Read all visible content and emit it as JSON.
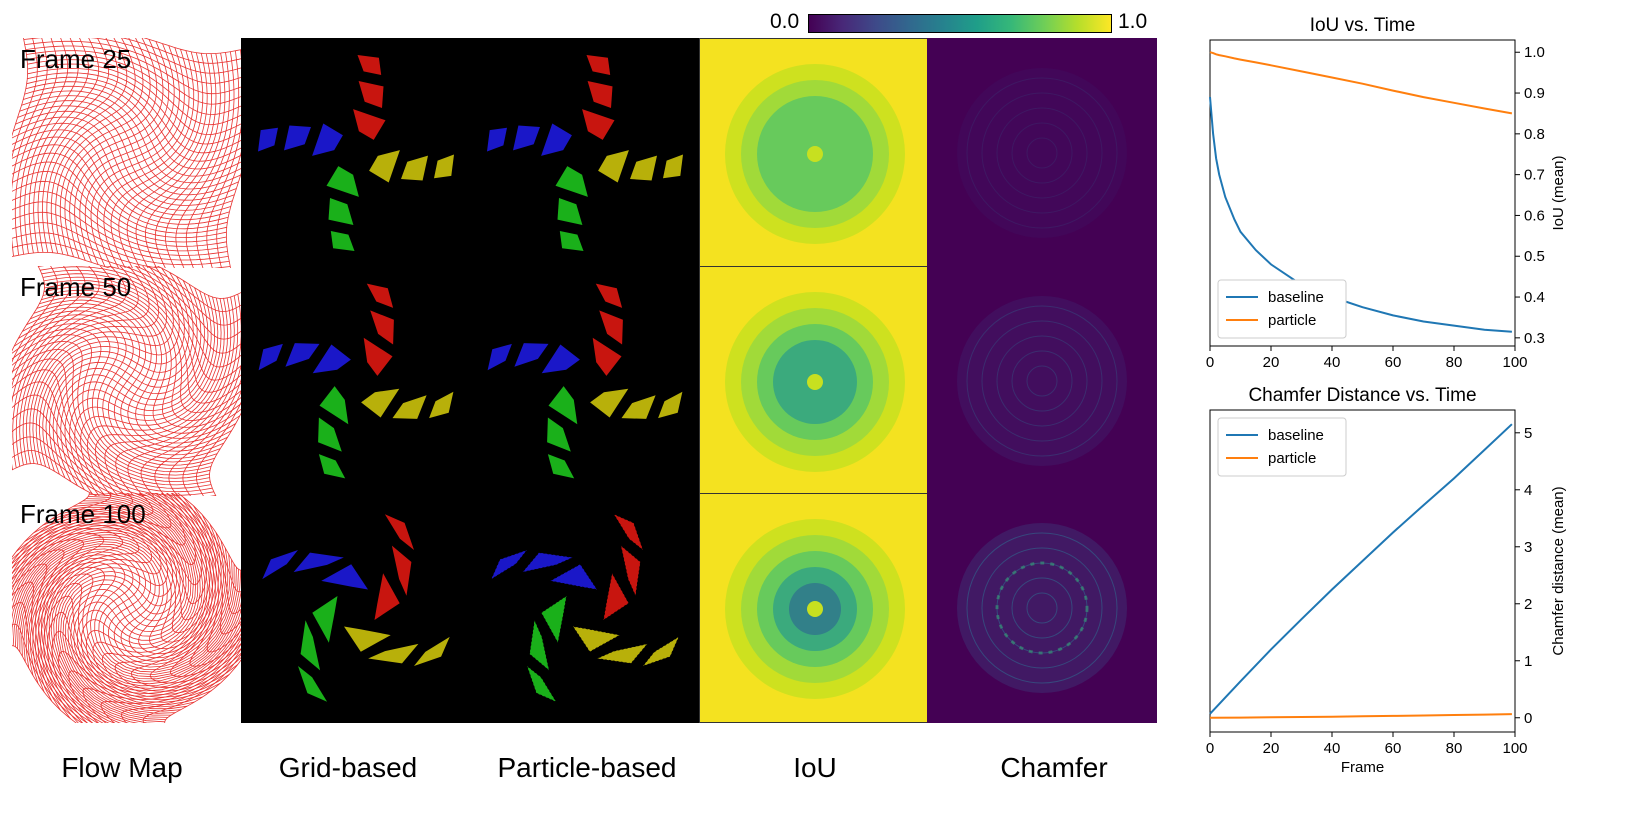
{
  "figure": {
    "colorbar": {
      "min_label": "0.0",
      "max_label": "1.0",
      "colormap": "viridis"
    },
    "frame_labels": [
      "Frame 25",
      "Frame 50",
      "Frame 100"
    ],
    "column_labels": [
      "Flow Map",
      "Grid-based",
      "Particle-based",
      "IoU",
      "Chamfer"
    ],
    "colors": {
      "grid_line": "#e8312f",
      "red": "#c8150f",
      "blue": "#1a17c8",
      "green": "#1ab01a",
      "yellow": "#b8b00a",
      "iou_bg": "#f4e220",
      "chamfer_bg": "#440154",
      "baseline": "#1f77b4",
      "particle": "#ff7f0e"
    }
  },
  "chart_data": [
    {
      "type": "line",
      "title": "IoU vs. Time",
      "xlabel": "",
      "ylabel": "IoU (mean)",
      "xlim": [
        0,
        100
      ],
      "ylim": [
        0.28,
        1.03
      ],
      "xticks": [
        0,
        20,
        40,
        60,
        80,
        100
      ],
      "yticks": [
        0.3,
        0.4,
        0.5,
        0.6,
        0.7,
        0.8,
        0.9,
        1.0
      ],
      "ytick_labels": [
        "0.3",
        "0.4",
        "0.5",
        "0.6",
        "0.7",
        "0.8",
        "0.9",
        "1.0"
      ],
      "legend": "lower-left",
      "x": [
        0,
        1,
        2,
        3,
        5,
        8,
        10,
        15,
        20,
        30,
        40,
        50,
        60,
        70,
        80,
        90,
        99
      ],
      "series": [
        {
          "name": "baseline",
          "values": [
            0.89,
            0.8,
            0.74,
            0.7,
            0.645,
            0.59,
            0.56,
            0.515,
            0.48,
            0.43,
            0.4,
            0.375,
            0.355,
            0.34,
            0.33,
            0.32,
            0.315
          ]
        },
        {
          "name": "particle",
          "values": [
            1.0,
            0.998,
            0.995,
            0.993,
            0.99,
            0.985,
            0.982,
            0.975,
            0.968,
            0.953,
            0.938,
            0.923,
            0.906,
            0.89,
            0.876,
            0.862,
            0.85
          ]
        }
      ]
    },
    {
      "type": "line",
      "title": "Chamfer Distance vs. Time",
      "xlabel": "Frame",
      "ylabel": "Chamfer distance (mean)",
      "xlim": [
        0,
        100
      ],
      "ylim": [
        -0.25,
        5.4
      ],
      "xticks": [
        0,
        20,
        40,
        60,
        80,
        100
      ],
      "yticks": [
        0,
        1,
        2,
        3,
        4,
        5
      ],
      "ytick_labels": [
        "0",
        "1",
        "2",
        "3",
        "4",
        "5"
      ],
      "legend": "upper-left",
      "x": [
        0,
        10,
        20,
        30,
        40,
        50,
        60,
        70,
        80,
        90,
        99
      ],
      "series": [
        {
          "name": "baseline",
          "values": [
            0.07,
            0.64,
            1.2,
            1.73,
            2.25,
            2.75,
            3.25,
            3.73,
            4.2,
            4.7,
            5.15
          ]
        },
        {
          "name": "particle",
          "values": [
            0.0,
            0.003,
            0.008,
            0.013,
            0.019,
            0.026,
            0.033,
            0.04,
            0.048,
            0.056,
            0.064
          ]
        }
      ]
    }
  ]
}
